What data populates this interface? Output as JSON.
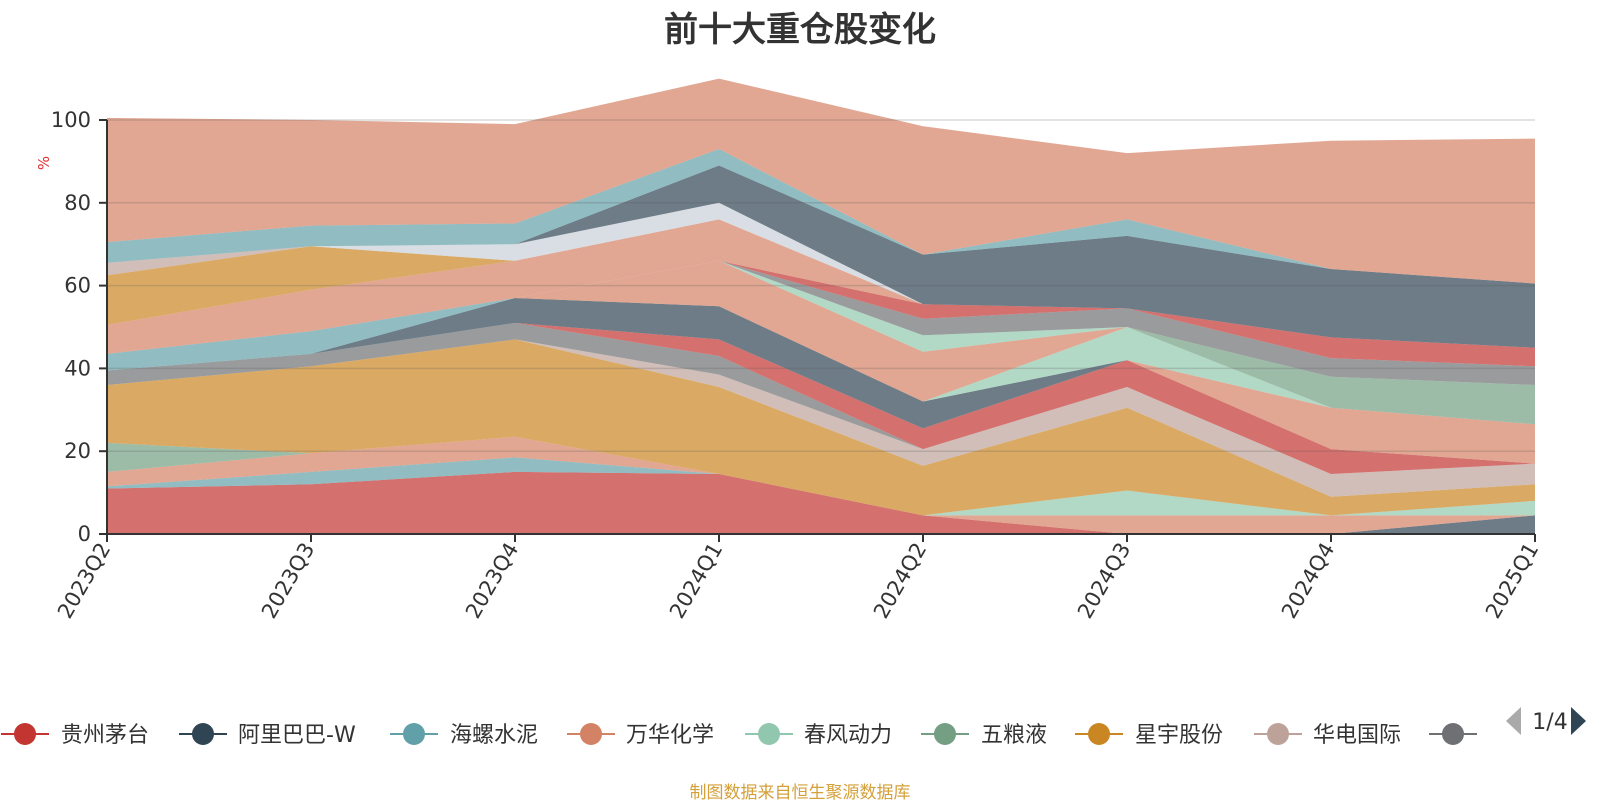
{
  "chart_data": {
    "type": "area",
    "stacked": true,
    "title": "前十大重仓股变化",
    "ylabel": "%",
    "ylim": [
      0,
      100
    ],
    "yticks": [
      0,
      20,
      40,
      60,
      80,
      100
    ],
    "categories": [
      "2023Q2",
      "2023Q3",
      "2023Q4",
      "2024Q1",
      "2024Q2",
      "2024Q3",
      "2024Q4",
      "2025Q1"
    ],
    "series": [
      {
        "name": "贵州茅台",
        "color": "#c23531",
        "values": [
          11,
          12,
          15,
          14.5,
          4.5,
          0,
          0,
          0
        ]
      },
      {
        "name": "阿里巴巴-W",
        "color": "#2f4554",
        "values": [
          0,
          0,
          0,
          0,
          0,
          0,
          0,
          4.5
        ]
      },
      {
        "name": "海螺水泥",
        "color": "#61a0a8",
        "values": [
          0.5,
          3,
          3.5,
          0,
          0,
          0,
          0,
          0
        ]
      },
      {
        "name": "万华化学",
        "color": "#d48265",
        "values": [
          3.5,
          4.5,
          5,
          0,
          0,
          4.5,
          4.5,
          0
        ]
      },
      {
        "name": "春风动力",
        "color": "#91c7ae",
        "values": [
          0,
          0,
          0,
          0,
          0,
          6,
          0,
          3.5
        ]
      },
      {
        "name": "五粮液",
        "color": "#749f83",
        "values": [
          7,
          0,
          0,
          0,
          0,
          0,
          0,
          0
        ]
      },
      {
        "name": "星宇股份",
        "color": "#ca8622",
        "values": [
          14,
          21,
          23.5,
          21,
          12,
          20,
          4.5,
          4
        ]
      },
      {
        "name": "华电国际",
        "color": "#bda29a",
        "values": [
          0,
          0,
          0,
          3,
          4,
          5,
          5.5,
          5
        ]
      },
      {
        "name": "",
        "color": "#6e7074",
        "values": [
          3.5,
          3,
          4,
          4.5,
          0,
          0,
          0,
          0
        ]
      },
      {
        "name": "",
        "color": "#c23531",
        "values": [
          0,
          0,
          0,
          4,
          5,
          6.5,
          6,
          0
        ]
      },
      {
        "name": "",
        "color": "#2f4554",
        "values": [
          0,
          0,
          6,
          8,
          6.5,
          0,
          0,
          0
        ]
      },
      {
        "name": "",
        "color": "#d48265",
        "values": [
          0,
          0,
          0,
          0,
          0,
          0,
          10,
          9.5
        ]
      },
      {
        "name": "",
        "color": "#91c7ae",
        "values": [
          0,
          0,
          0,
          0,
          0,
          8,
          0,
          0
        ]
      },
      {
        "name": "",
        "color": "#749f83",
        "values": [
          0,
          0,
          0,
          0,
          0,
          0,
          7.5,
          9.5
        ]
      },
      {
        "name": "",
        "color": "#d48265",
        "values": [
          0,
          0,
          0,
          11,
          12,
          0,
          0,
          0
        ]
      },
      {
        "name": "",
        "color": "#91c7ae",
        "values": [
          0,
          0,
          0,
          0,
          4,
          0,
          0,
          0
        ]
      },
      {
        "name": "",
        "color": "#6e7074",
        "values": [
          0,
          0,
          0,
          0,
          4,
          4.5,
          4.5,
          4.5
        ]
      },
      {
        "name": "",
        "color": "#c23531",
        "values": [
          0,
          0,
          0,
          0,
          3.5,
          0,
          5,
          4.5
        ]
      },
      {
        "name": "",
        "color": "#61a0a8",
        "values": [
          4,
          5.5,
          0,
          0,
          0,
          0,
          0,
          0
        ]
      },
      {
        "name": "",
        "color": "#d48265",
        "values": [
          7,
          10,
          9,
          10,
          0,
          0,
          0,
          0
        ]
      },
      {
        "name": "",
        "color": "#ca8622",
        "values": [
          12,
          10.5,
          0,
          0,
          0,
          0,
          0,
          0
        ]
      },
      {
        "name": "",
        "color": "#bda29a",
        "values": [
          3,
          0,
          0,
          0,
          0,
          0,
          0,
          0
        ]
      },
      {
        "name": "",
        "color": "#c8d0d8",
        "values": [
          0,
          0,
          4,
          4,
          0,
          0,
          0,
          0
        ]
      },
      {
        "name": "",
        "color": "#2f4554",
        "values": [
          0,
          0,
          0,
          9,
          12,
          17.5,
          16.5,
          15.5
        ]
      },
      {
        "name": "",
        "color": "#61a0a8",
        "values": [
          5,
          5,
          5,
          4,
          0,
          4,
          0,
          0
        ]
      },
      {
        "name": "",
        "color": "#d48265",
        "values": [
          30,
          25.5,
          24,
          17,
          31,
          16,
          31,
          35
        ]
      }
    ],
    "legend": {
      "items": [
        "贵州茅台",
        "阿里巴巴-W",
        "海螺水泥",
        "万华化学",
        "春风动力",
        "五粮液",
        "星宇股份",
        "华电国际",
        ""
      ],
      "colors": [
        "#c23531",
        "#2f4554",
        "#61a0a8",
        "#d48265",
        "#91c7ae",
        "#749f83",
        "#ca8622",
        "#bda29a",
        "#6e7074"
      ],
      "page": "1/4",
      "position": "bottom"
    },
    "source_note": "制图数据来自恒生聚源数据库"
  }
}
